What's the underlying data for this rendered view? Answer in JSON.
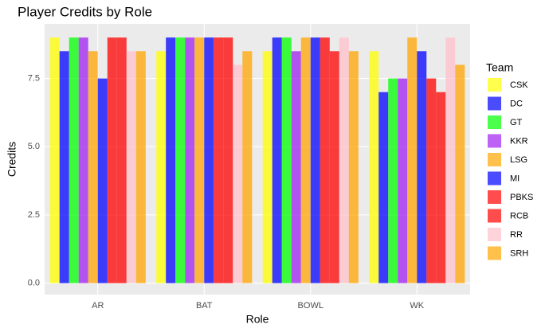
{
  "chart_data": {
    "type": "bar",
    "title": "Player Credits by Role",
    "x_label": "Role",
    "y_label": "Credits",
    "categories": [
      "AR",
      "BAT",
      "BOWL",
      "WK"
    ],
    "series": [
      {
        "name": "CSK",
        "color": "#ffff00",
        "values": [
          9,
          8.5,
          8.5,
          8.5
        ]
      },
      {
        "name": "DC",
        "color": "#0000ff",
        "values": [
          8.5,
          9,
          9,
          7
        ]
      },
      {
        "name": "GT",
        "color": "#00ff00",
        "values": [
          9,
          9,
          9,
          7.5
        ]
      },
      {
        "name": "KKR",
        "color": "#a020f0",
        "values": [
          9,
          9,
          8.5,
          7.5
        ]
      },
      {
        "name": "LSG",
        "color": "#ffa500",
        "values": [
          8.5,
          9,
          9,
          9
        ]
      },
      {
        "name": "MI",
        "color": "#0000ff",
        "values": [
          7.5,
          9,
          9,
          8.5
        ]
      },
      {
        "name": "PBKS",
        "color": "#ff0000",
        "values": [
          9,
          9,
          9,
          7.5
        ]
      },
      {
        "name": "RCB",
        "color": "#ff0000",
        "values": [
          9,
          9,
          8.5,
          7
        ]
      },
      {
        "name": "RR",
        "color": "#ffc0cb",
        "values": [
          8.5,
          8,
          9,
          9
        ]
      },
      {
        "name": "SRH",
        "color": "#ffa500",
        "values": [
          8.5,
          8.5,
          8.5,
          8
        ]
      }
    ],
    "legend_title": "Team",
    "ylim": [
      -0.42,
      9.5
    ],
    "yticks": [
      {
        "value": 0,
        "label": "0.0"
      },
      2.5,
      {
        "value": 5,
        "label": "5.0"
      },
      7.5
    ],
    "grid": true
  }
}
